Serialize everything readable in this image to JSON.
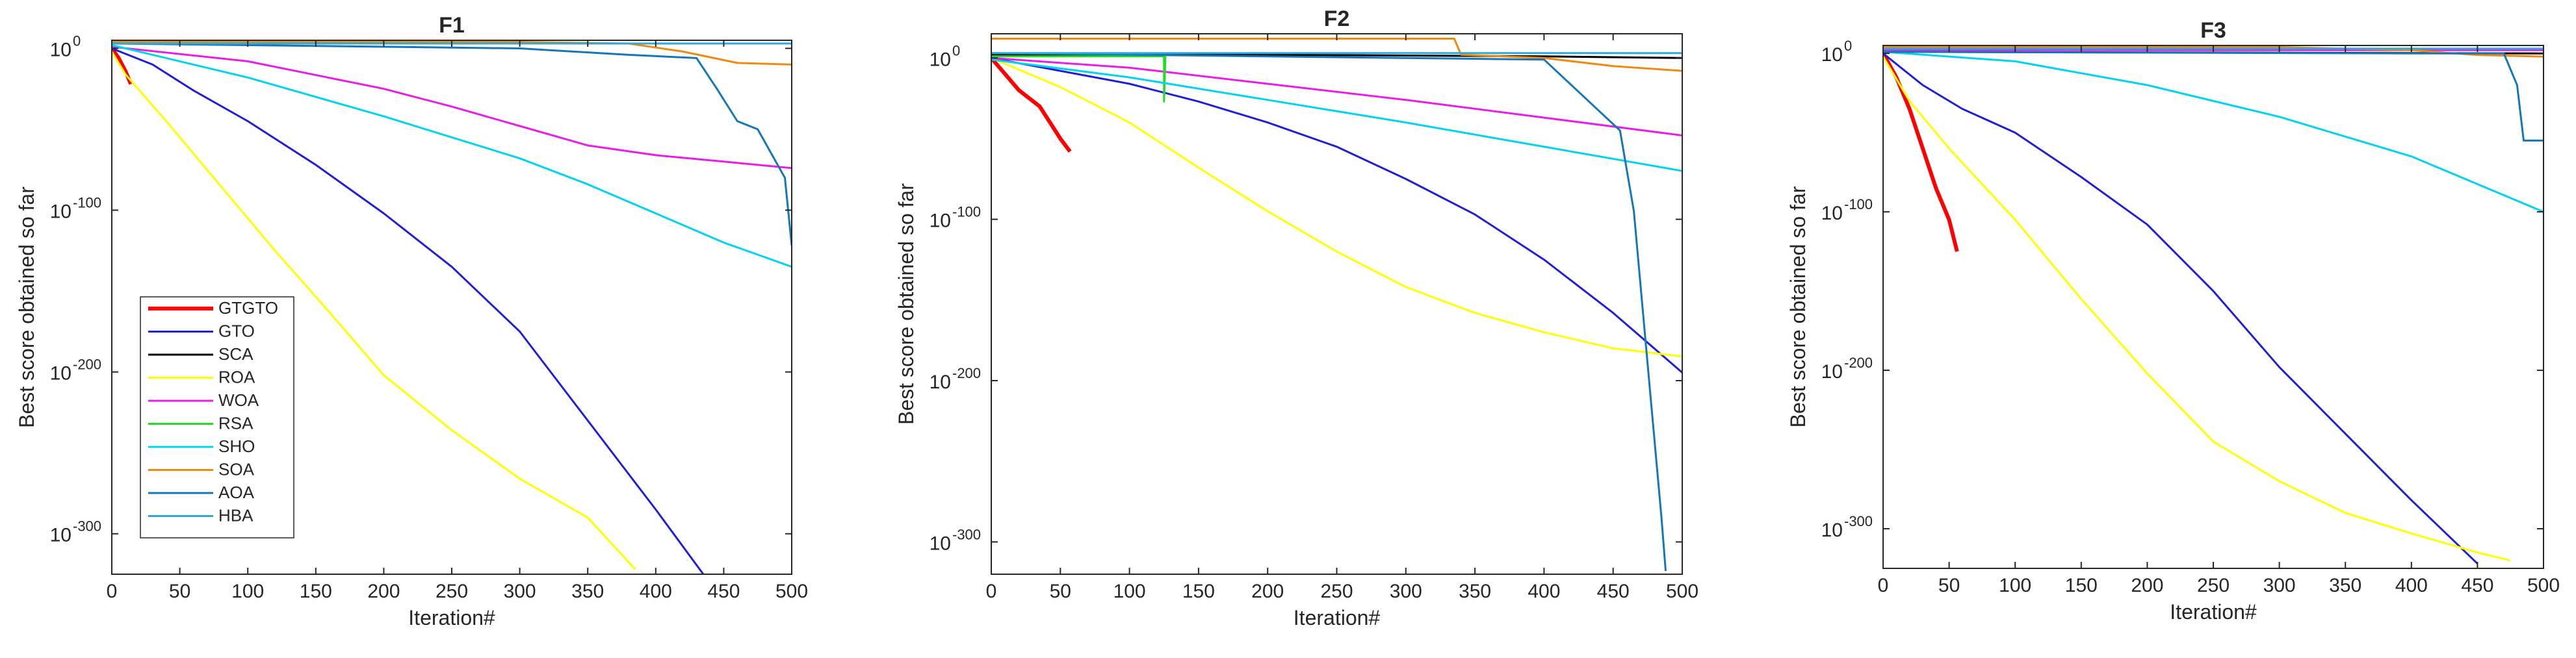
{
  "chart_data": [
    {
      "type": "line",
      "title": "F1",
      "xlabel": "Iteration#",
      "ylabel": "Best score obtained so far",
      "xlim": [
        0,
        500
      ],
      "ylim_exponent": [
        -325,
        5
      ],
      "y_scale": "log",
      "x_ticks": [
        "0",
        "50",
        "100",
        "150",
        "200",
        "250",
        "300",
        "350",
        "400",
        "450",
        "500"
      ],
      "y_ticks": [
        {
          "exp": 0,
          "label": "0"
        },
        {
          "exp": -100,
          "label": "-100"
        },
        {
          "exp": -200,
          "label": "-200"
        },
        {
          "exp": -300,
          "label": "-300"
        }
      ],
      "legend": {
        "placement": "lower-left",
        "entries": [
          "GTGTO",
          "GTO",
          "SCA",
          "ROA",
          "WOA",
          "RSA",
          "SHO",
          "SOA",
          "AOA",
          "HBA"
        ]
      },
      "series": [
        {
          "name": "GTGTO",
          "color": "#ff0000",
          "width": 6,
          "points": [
            [
              0,
              0
            ],
            [
              5,
              -6
            ],
            [
              10,
              -14
            ],
            [
              14,
              -22
            ]
          ]
        },
        {
          "name": "GTO",
          "color": "#1f1fd6",
          "points": [
            [
              0,
              0
            ],
            [
              30,
              -10
            ],
            [
              60,
              -26
            ],
            [
              100,
              -45
            ],
            [
              150,
              -72
            ],
            [
              200,
              -102
            ],
            [
              250,
              -135
            ],
            [
              300,
              -175
            ],
            [
              350,
              -230
            ],
            [
              400,
              -285
            ],
            [
              435,
              -325
            ]
          ]
        },
        {
          "name": "SCA",
          "color": "#000000",
          "points": [
            [
              0,
              4
            ],
            [
              100,
              4
            ],
            [
              200,
              4
            ],
            [
              300,
              3
            ],
            [
              400,
              3
            ],
            [
              500,
              3
            ]
          ]
        },
        {
          "name": "ROA",
          "color": "#ffff00",
          "points": [
            [
              0,
              -2
            ],
            [
              10,
              -16
            ],
            [
              40,
              -45
            ],
            [
              80,
              -85
            ],
            [
              120,
              -125
            ],
            [
              160,
              -163
            ],
            [
              200,
              -202
            ],
            [
              250,
              -236
            ],
            [
              300,
              -266
            ],
            [
              350,
              -290
            ],
            [
              385,
              -322
            ]
          ]
        },
        {
          "name": "WOA",
          "color": "#e81ee8",
          "points": [
            [
              0,
              1
            ],
            [
              100,
              -8
            ],
            [
              200,
              -25
            ],
            [
              250,
              -36
            ],
            [
              300,
              -48
            ],
            [
              350,
              -60
            ],
            [
              400,
              -66
            ],
            [
              450,
              -70
            ],
            [
              500,
              -74
            ]
          ]
        },
        {
          "name": "RSA",
          "color": "#22dd22",
          "points": [
            [
              0,
              4
            ],
            [
              125,
              4
            ]
          ]
        },
        {
          "name": "SHO",
          "color": "#00d4f0",
          "points": [
            [
              0,
              2
            ],
            [
              50,
              -8
            ],
            [
              100,
              -18
            ],
            [
              200,
              -42
            ],
            [
              300,
              -68
            ],
            [
              350,
              -84
            ],
            [
              400,
              -102
            ],
            [
              450,
              -120
            ],
            [
              500,
              -135
            ]
          ]
        },
        {
          "name": "SOA",
          "color": "#ee8a10",
          "points": [
            [
              0,
              4
            ],
            [
              300,
              4
            ],
            [
              380,
              3
            ],
            [
              420,
              -2
            ],
            [
              460,
              -9
            ],
            [
              500,
              -10
            ]
          ]
        },
        {
          "name": "AOA",
          "color": "#1577b8",
          "points": [
            [
              0,
              3
            ],
            [
              300,
              0
            ],
            [
              380,
              -4
            ],
            [
              430,
              -6
            ],
            [
              445,
              -25
            ],
            [
              460,
              -45
            ],
            [
              475,
              -50
            ],
            [
              485,
              -65
            ],
            [
              495,
              -80
            ],
            [
              500,
              -122
            ]
          ]
        },
        {
          "name": "HBA",
          "color": "#2fa9dc",
          "points": [
            [
              0,
              3
            ],
            [
              500,
              3
            ]
          ]
        }
      ]
    },
    {
      "type": "line",
      "title": "F2",
      "xlabel": "Iteration#",
      "ylabel": "Best score obtained so far",
      "xlim": [
        0,
        500
      ],
      "ylim_exponent": [
        -320,
        15
      ],
      "y_scale": "log",
      "x_ticks": [
        "0",
        "50",
        "100",
        "150",
        "200",
        "250",
        "300",
        "350",
        "400",
        "450",
        "500"
      ],
      "y_ticks": [
        {
          "exp": 0,
          "label": "0"
        },
        {
          "exp": -100,
          "label": "-100"
        },
        {
          "exp": -200,
          "label": "-200"
        },
        {
          "exp": -300,
          "label": "-300"
        }
      ],
      "series": [
        {
          "name": "GTGTO",
          "color": "#ff0000",
          "width": 6,
          "points": [
            [
              0,
              0
            ],
            [
              10,
              -10
            ],
            [
              20,
              -20
            ],
            [
              35,
              -30
            ],
            [
              50,
              -50
            ],
            [
              57,
              -58
            ]
          ]
        },
        {
          "name": "GTO",
          "color": "#1f1fd6",
          "points": [
            [
              0,
              0
            ],
            [
              50,
              -8
            ],
            [
              100,
              -16
            ],
            [
              150,
              -27
            ],
            [
              200,
              -40
            ],
            [
              250,
              -55
            ],
            [
              300,
              -75
            ],
            [
              350,
              -97
            ],
            [
              400,
              -125
            ],
            [
              450,
              -158
            ],
            [
              500,
              -195
            ]
          ]
        },
        {
          "name": "SCA",
          "color": "#000000",
          "points": [
            [
              0,
              2
            ],
            [
              200,
              2
            ],
            [
              400,
              1
            ],
            [
              500,
              0
            ]
          ]
        },
        {
          "name": "ROA",
          "color": "#ffff00",
          "points": [
            [
              0,
              0
            ],
            [
              50,
              -18
            ],
            [
              100,
              -40
            ],
            [
              150,
              -68
            ],
            [
              200,
              -95
            ],
            [
              250,
              -120
            ],
            [
              300,
              -142
            ],
            [
              350,
              -158
            ],
            [
              400,
              -170
            ],
            [
              450,
              -180
            ],
            [
              500,
              -185
            ]
          ]
        },
        {
          "name": "WOA",
          "color": "#e81ee8",
          "points": [
            [
              0,
              0
            ],
            [
              100,
              -6
            ],
            [
              200,
              -16
            ],
            [
              300,
              -26
            ],
            [
              400,
              -37
            ],
            [
              500,
              -48
            ]
          ]
        },
        {
          "name": "RSA",
          "color": "#22dd22",
          "points": [
            [
              0,
              1
            ],
            [
              125,
              1
            ],
            [
              125,
              -27
            ],
            [
              126,
              1
            ]
          ]
        },
        {
          "name": "SHO",
          "color": "#00d4f0",
          "points": [
            [
              0,
              -1
            ],
            [
              100,
              -12
            ],
            [
              200,
              -26
            ],
            [
              300,
              -40
            ],
            [
              400,
              -55
            ],
            [
              500,
              -70
            ]
          ]
        },
        {
          "name": "SOA",
          "color": "#ee8a10",
          "points": [
            [
              0,
              12
            ],
            [
              335,
              12
            ],
            [
              340,
              2
            ],
            [
              400,
              0
            ],
            [
              450,
              -5
            ],
            [
              500,
              -8
            ]
          ]
        },
        {
          "name": "AOA",
          "color": "#1577b8",
          "points": [
            [
              0,
              3
            ],
            [
              300,
              0
            ],
            [
              400,
              -1
            ],
            [
              430,
              -25
            ],
            [
              455,
              -45
            ],
            [
              465,
              -95
            ],
            [
              475,
              -190
            ],
            [
              485,
              -285
            ],
            [
              488,
              -318
            ]
          ]
        },
        {
          "name": "HBA",
          "color": "#2fa9dc",
          "points": [
            [
              0,
              3
            ],
            [
              500,
              3
            ]
          ]
        }
      ]
    },
    {
      "type": "line",
      "title": "F3",
      "xlabel": "Iteration#",
      "ylabel": "Best score obtained so far",
      "xlim": [
        0,
        500
      ],
      "ylim_exponent": [
        -325,
        5
      ],
      "y_scale": "log",
      "x_ticks": [
        "0",
        "50",
        "100",
        "150",
        "200",
        "250",
        "300",
        "350",
        "400",
        "450",
        "500"
      ],
      "y_ticks": [
        {
          "exp": 0,
          "label": "0"
        },
        {
          "exp": -100,
          "label": "-100"
        },
        {
          "exp": -200,
          "label": "-200"
        },
        {
          "exp": -300,
          "label": "-300"
        }
      ],
      "series": [
        {
          "name": "GTGTO",
          "color": "#ff0000",
          "width": 6,
          "points": [
            [
              0,
              0
            ],
            [
              10,
              -15
            ],
            [
              20,
              -35
            ],
            [
              30,
              -60
            ],
            [
              40,
              -85
            ],
            [
              50,
              -105
            ],
            [
              56,
              -125
            ]
          ]
        },
        {
          "name": "GTO",
          "color": "#1f1fd6",
          "points": [
            [
              0,
              0
            ],
            [
              30,
              -20
            ],
            [
              60,
              -35
            ],
            [
              100,
              -50
            ],
            [
              150,
              -78
            ],
            [
              200,
              -108
            ],
            [
              250,
              -150
            ],
            [
              300,
              -198
            ],
            [
              350,
              -240
            ],
            [
              400,
              -282
            ],
            [
              450,
              -322
            ]
          ]
        },
        {
          "name": "SCA",
          "color": "#000000",
          "points": [
            [
              0,
              1
            ],
            [
              500,
              0
            ]
          ]
        },
        {
          "name": "ROA",
          "color": "#ffff00",
          "points": [
            [
              0,
              -2
            ],
            [
              20,
              -30
            ],
            [
              50,
              -60
            ],
            [
              100,
              -105
            ],
            [
              150,
              -155
            ],
            [
              200,
              -202
            ],
            [
              250,
              -245
            ],
            [
              300,
              -270
            ],
            [
              350,
              -290
            ],
            [
              400,
              -303
            ],
            [
              450,
              -315
            ],
            [
              475,
              -320
            ]
          ]
        },
        {
          "name": "WOA",
          "color": "#e81ee8",
          "points": [
            [
              0,
              2
            ],
            [
              250,
              2
            ],
            [
              500,
              2
            ]
          ]
        },
        {
          "name": "RSA",
          "color": "#22dd22",
          "points": [
            [
              0,
              4
            ],
            [
              120,
              4
            ]
          ]
        },
        {
          "name": "SHO",
          "color": "#00d4f0",
          "points": [
            [
              0,
              1
            ],
            [
              100,
              -5
            ],
            [
              200,
              -20
            ],
            [
              300,
              -40
            ],
            [
              400,
              -65
            ],
            [
              500,
              -100
            ]
          ]
        },
        {
          "name": "SOA",
          "color": "#ee8a10",
          "points": [
            [
              0,
              4
            ],
            [
              300,
              4
            ],
            [
              400,
              2
            ],
            [
              450,
              -1
            ],
            [
              500,
              -2
            ]
          ]
        },
        {
          "name": "AOA",
          "color": "#1577b8",
          "points": [
            [
              0,
              1
            ],
            [
              400,
              0
            ],
            [
              470,
              0
            ],
            [
              480,
              -20
            ],
            [
              485,
              -55
            ],
            [
              500,
              -55
            ]
          ]
        },
        {
          "name": "HBA",
          "color": "#2fa9dc",
          "points": [
            [
              0,
              3
            ],
            [
              500,
              3
            ]
          ]
        }
      ]
    }
  ]
}
